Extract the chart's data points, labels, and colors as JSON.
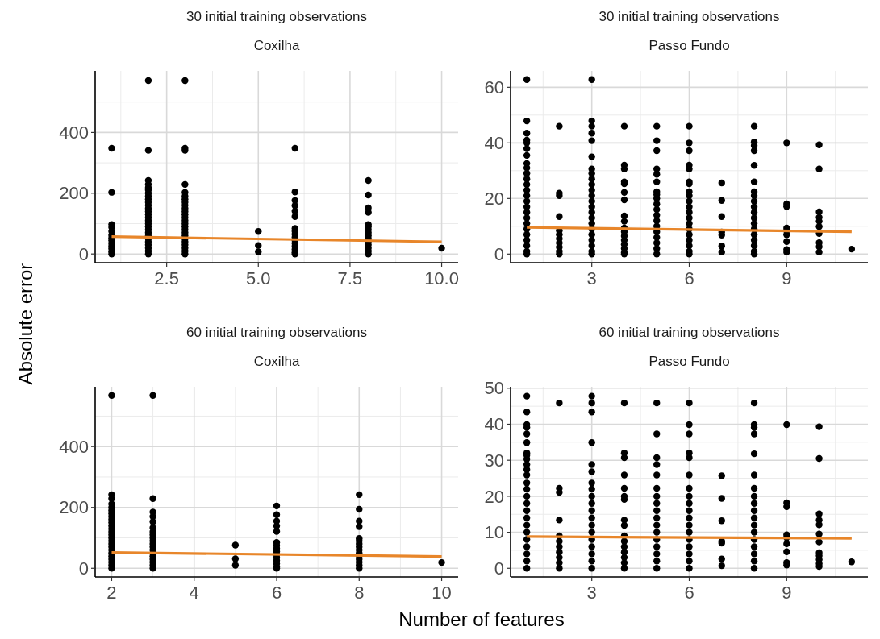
{
  "chart_data": [
    {
      "type": "scatter",
      "title": "30 initial training observations",
      "subtitle": "Coxilha",
      "ylabel": "Absolute error",
      "xlim": [
        0.55,
        10.45
      ],
      "xticks": [
        {
          "value": 2.5,
          "label": "2.5"
        },
        {
          "value": 5,
          "label": "5.0"
        },
        {
          "value": 7.5,
          "label": "7.5"
        },
        {
          "value": 10,
          "label": "10.0"
        }
      ],
      "ylim": [
        -28.7,
        602.7
      ],
      "yticks": [
        0,
        200,
        400
      ],
      "grid": true,
      "series": [
        {
          "marker": "circle",
          "color": "#000000",
          "x": [
            1,
            1,
            1,
            1,
            1,
            1,
            1,
            1,
            1,
            1,
            1,
            1,
            1,
            2,
            2,
            2,
            2,
            2,
            2,
            2,
            2,
            2,
            2,
            2,
            2,
            2,
            2,
            2,
            2,
            2,
            2,
            2,
            2,
            2,
            2,
            2,
            2,
            2,
            2,
            2,
            3,
            3,
            3,
            3,
            3,
            3,
            3,
            3,
            3,
            3,
            3,
            3,
            3,
            3,
            3,
            3,
            3,
            3,
            3,
            3,
            3,
            3,
            3,
            3,
            3,
            5,
            5,
            5,
            6,
            6,
            6,
            6,
            6,
            6,
            6,
            6,
            6,
            6,
            6,
            6,
            6,
            6,
            6,
            6,
            8,
            8,
            8,
            8,
            8,
            8,
            8,
            8,
            8,
            8,
            8,
            8,
            8,
            8,
            8,
            10
          ],
          "values": [
            348,
            203,
            97,
            88,
            75,
            62,
            53,
            45,
            35,
            26,
            18,
            8,
            0,
            571,
            341,
            242,
            229,
            218,
            211,
            200,
            190,
            180,
            170,
            160,
            150,
            140,
            130,
            120,
            110,
            100,
            90,
            80,
            70,
            60,
            50,
            40,
            30,
            20,
            10,
            0,
            571,
            348,
            341,
            229,
            203,
            190,
            180,
            170,
            160,
            150,
            140,
            130,
            120,
            110,
            100,
            90,
            80,
            70,
            60,
            50,
            40,
            30,
            20,
            10,
            0,
            74,
            28,
            7,
            348,
            204,
            176,
            159,
            141,
            123,
            84,
            75,
            65,
            55,
            45,
            35,
            25,
            15,
            5,
            0,
            242,
            194,
            152,
            137,
            97,
            90,
            80,
            70,
            60,
            50,
            40,
            30,
            20,
            10,
            0,
            19
          ]
        },
        {
          "type": "line",
          "color": "#e8862a",
          "x": [
            1,
            10
          ],
          "values": [
            57,
            40
          ]
        }
      ]
    },
    {
      "type": "scatter",
      "title": "30 initial training observations",
      "subtitle": "Passo Fundo",
      "xlim": [
        0.5,
        11.5
      ],
      "xticks": [
        3,
        6,
        9
      ],
      "ylim": [
        -3.1,
        65.9
      ],
      "yticks": [
        0,
        20,
        40,
        60
      ],
      "grid": true,
      "series": [
        {
          "marker": "circle",
          "color": "#000000",
          "x": [
            1,
            1,
            1,
            1,
            1,
            1,
            1,
            1,
            1,
            1,
            1,
            1,
            1,
            1,
            1,
            1,
            1,
            1,
            1,
            1,
            1,
            1,
            1,
            1,
            1,
            2,
            2,
            2,
            2,
            2,
            2,
            2,
            2,
            2,
            2,
            2,
            3,
            3,
            3,
            3,
            3,
            3,
            3,
            3,
            3,
            3,
            3,
            3,
            3,
            3,
            3,
            3,
            3,
            3,
            3,
            3,
            3,
            3,
            3,
            4,
            4,
            4,
            4,
            4,
            4,
            4,
            4,
            4,
            4,
            4,
            4,
            4,
            4,
            4,
            4,
            4,
            5,
            5,
            5,
            5,
            5,
            5,
            5,
            5,
            5,
            5,
            5,
            5,
            5,
            5,
            5,
            5,
            5,
            5,
            5,
            6,
            6,
            6,
            6,
            6,
            6,
            6,
            6,
            6,
            6,
            6,
            6,
            6,
            6,
            6,
            6,
            6,
            6,
            6,
            6,
            7,
            7,
            7,
            7,
            7,
            7,
            7,
            8,
            8,
            8,
            8,
            8,
            8,
            8,
            8,
            8,
            8,
            8,
            8,
            8,
            8,
            8,
            8,
            8,
            8,
            8,
            9,
            9,
            9,
            9,
            9,
            9,
            9,
            9,
            9,
            10,
            10,
            10,
            10,
            10,
            10,
            10,
            10,
            10,
            10,
            11
          ],
          "values": [
            62.8,
            47.9,
            43.5,
            41,
            40,
            37.9,
            35.5,
            32.6,
            31,
            29,
            27,
            25,
            23,
            21,
            19,
            17,
            15,
            13,
            11,
            9,
            7,
            5,
            3,
            1,
            0,
            46,
            21.9,
            21,
            13.5,
            8.4,
            7,
            5.5,
            4,
            2.5,
            1,
            0,
            62.8,
            47.9,
            46,
            43.5,
            40.8,
            35,
            30.6,
            29,
            27,
            25,
            23,
            21,
            19,
            17,
            15,
            13,
            11,
            9,
            7,
            5,
            3,
            1,
            0,
            46,
            32,
            30.6,
            26,
            25.3,
            22.2,
            19.5,
            13.7,
            11.8,
            9.4,
            8,
            6.5,
            5,
            3.5,
            2,
            0.5,
            0,
            46,
            40.8,
            37.2,
            30.6,
            28.7,
            26,
            22.4,
            21.4,
            20,
            18,
            16,
            14,
            12,
            10,
            8,
            6,
            4,
            2,
            0,
            46,
            40,
            37.2,
            32,
            30.6,
            26,
            25.3,
            22.4,
            21,
            19,
            17,
            15,
            13,
            11,
            9,
            7,
            5,
            3,
            1,
            0,
            25.6,
            19.3,
            13.5,
            7.9,
            6.8,
            2.9,
            0.7,
            46,
            40.3,
            39,
            37.2,
            31.9,
            26,
            22.4,
            21,
            19,
            17,
            15,
            13,
            11,
            9,
            7,
            5,
            3,
            1,
            0,
            40,
            18.1,
            17.1,
            9.4,
            8.4,
            7,
            4.5,
            1.6,
            0.7,
            39.3,
            30.6,
            15.2,
            13.2,
            11.8,
            9.9,
            7.4,
            4.1,
            2.6,
            0.7,
            1.8
          ]
        },
        {
          "type": "line",
          "color": "#e8862a",
          "x": [
            1,
            11
          ],
          "values": [
            9.6,
            8
          ]
        }
      ]
    },
    {
      "type": "scatter",
      "title": "60 initial training observations",
      "subtitle": "Coxilha",
      "xlabel": "Number of features",
      "xlim": [
        1.6,
        10.4
      ],
      "xticks": [
        2,
        4,
        6,
        8,
        10
      ],
      "ylim": [
        -28.4,
        596.4
      ],
      "yticks": [
        0,
        200,
        400
      ],
      "grid": true,
      "series": [
        {
          "marker": "circle",
          "color": "#000000",
          "x": [
            2,
            2,
            2,
            2,
            2,
            2,
            2,
            2,
            2,
            2,
            2,
            2,
            2,
            2,
            2,
            2,
            2,
            2,
            2,
            2,
            2,
            2,
            2,
            2,
            2,
            3,
            3,
            3,
            3,
            3,
            3,
            3,
            3,
            3,
            3,
            3,
            3,
            3,
            3,
            3,
            3,
            3,
            3,
            3,
            5,
            5,
            5,
            6,
            6,
            6,
            6,
            6,
            6,
            6,
            6,
            6,
            6,
            6,
            6,
            6,
            6,
            6,
            8,
            8,
            8,
            8,
            8,
            8,
            8,
            8,
            8,
            8,
            8,
            8,
            8,
            8,
            8,
            10
          ],
          "values": [
            568,
            242,
            229,
            211,
            200,
            190,
            180,
            170,
            160,
            150,
            140,
            130,
            120,
            110,
            100,
            90,
            80,
            70,
            60,
            50,
            40,
            30,
            20,
            10,
            0,
            568,
            229,
            185,
            170,
            153,
            133,
            120,
            110,
            100,
            90,
            80,
            70,
            60,
            50,
            40,
            30,
            20,
            10,
            0,
            76,
            31,
            10,
            205,
            176,
            155,
            139,
            121,
            85,
            75,
            65,
            55,
            45,
            35,
            25,
            15,
            5,
            0,
            242,
            194,
            155,
            137,
            98,
            90,
            80,
            70,
            60,
            50,
            40,
            30,
            20,
            10,
            0,
            19
          ]
        },
        {
          "type": "line",
          "color": "#e8862a",
          "x": [
            2,
            10
          ],
          "values": [
            52,
            39
          ]
        }
      ]
    },
    {
      "type": "scatter",
      "title": "60 initial training observations",
      "subtitle": "Passo Fundo",
      "xlim": [
        0.5,
        11.5
      ],
      "xticks": [
        3,
        6,
        9
      ],
      "ylim": [
        -2.4,
        50.4
      ],
      "yticks": [
        0,
        10,
        20,
        30,
        40,
        50
      ],
      "grid": true,
      "series": [
        {
          "marker": "circle",
          "color": "#000000",
          "x": [
            1,
            1,
            1,
            1,
            1,
            1,
            1,
            1,
            1,
            1,
            1,
            1,
            1,
            1,
            1,
            1,
            1,
            1,
            1,
            1,
            1,
            1,
            1,
            1,
            1,
            2,
            2,
            2,
            2,
            2,
            2,
            2,
            2,
            2,
            2,
            2,
            3,
            3,
            3,
            3,
            3,
            3,
            3,
            3,
            3,
            3,
            3,
            3,
            3,
            3,
            3,
            3,
            3,
            3,
            3,
            4,
            4,
            4,
            4,
            4,
            4,
            4,
            4,
            4,
            4,
            4,
            4,
            4,
            4,
            4,
            4,
            5,
            5,
            5,
            5,
            5,
            5,
            5,
            5,
            5,
            5,
            5,
            5,
            5,
            5,
            5,
            5,
            5,
            6,
            6,
            6,
            6,
            6,
            6,
            6,
            6,
            6,
            6,
            6,
            6,
            6,
            6,
            6,
            6,
            6,
            6,
            7,
            7,
            7,
            7,
            7,
            7,
            7,
            8,
            8,
            8,
            8,
            8,
            8,
            8,
            8,
            8,
            8,
            8,
            8,
            8,
            8,
            8,
            8,
            8,
            8,
            9,
            9,
            9,
            9,
            9,
            9,
            9,
            9,
            9,
            10,
            10,
            10,
            10,
            10,
            10,
            10,
            10,
            10,
            10,
            10,
            10,
            11
          ],
          "values": [
            47.8,
            43.4,
            39.9,
            39.1,
            37.3,
            34.9,
            32,
            31.4,
            30.3,
            28.8,
            27.4,
            25.9,
            23.7,
            22,
            20,
            18,
            16,
            14,
            12,
            10,
            8,
            6,
            4,
            2,
            0,
            45.9,
            22.2,
            21.1,
            13.4,
            9,
            7.5,
            6,
            4.5,
            3,
            1.5,
            0,
            47.8,
            45.9,
            43.4,
            34.9,
            28.8,
            26.8,
            23.7,
            22,
            20,
            18,
            16,
            14,
            12,
            10,
            8,
            6,
            4,
            2,
            0,
            45.9,
            32,
            30.7,
            25.9,
            22.2,
            20,
            19.1,
            13.4,
            11.9,
            9,
            7.5,
            6,
            4.5,
            3,
            1.5,
            0,
            45.9,
            37.3,
            30.7,
            28.8,
            25.9,
            22.2,
            20,
            18,
            16,
            14,
            12,
            10,
            8,
            6,
            4,
            2,
            0,
            45.9,
            39.9,
            37.3,
            32,
            30.7,
            25.9,
            22.2,
            20,
            18,
            16,
            14,
            12,
            10,
            8,
            6,
            4,
            2,
            0,
            25.7,
            19.4,
            13.2,
            7.5,
            7,
            2.6,
            0.7,
            45.9,
            39.9,
            39.1,
            37.3,
            31.8,
            25.9,
            22.2,
            20,
            18,
            16,
            14,
            12,
            10,
            8,
            6,
            4,
            2,
            0,
            39.9,
            18.2,
            17.1,
            9.3,
            8.5,
            6.8,
            4.6,
            1.6,
            0.9,
            39.3,
            30.5,
            15.1,
            13.4,
            12.1,
            9.5,
            7.3,
            4.3,
            3.5,
            2.4,
            1.3,
            0.5,
            1.8
          ]
        },
        {
          "type": "line",
          "color": "#e8862a",
          "x": [
            1,
            11
          ],
          "values": [
            8.8,
            8.3
          ]
        }
      ]
    }
  ]
}
